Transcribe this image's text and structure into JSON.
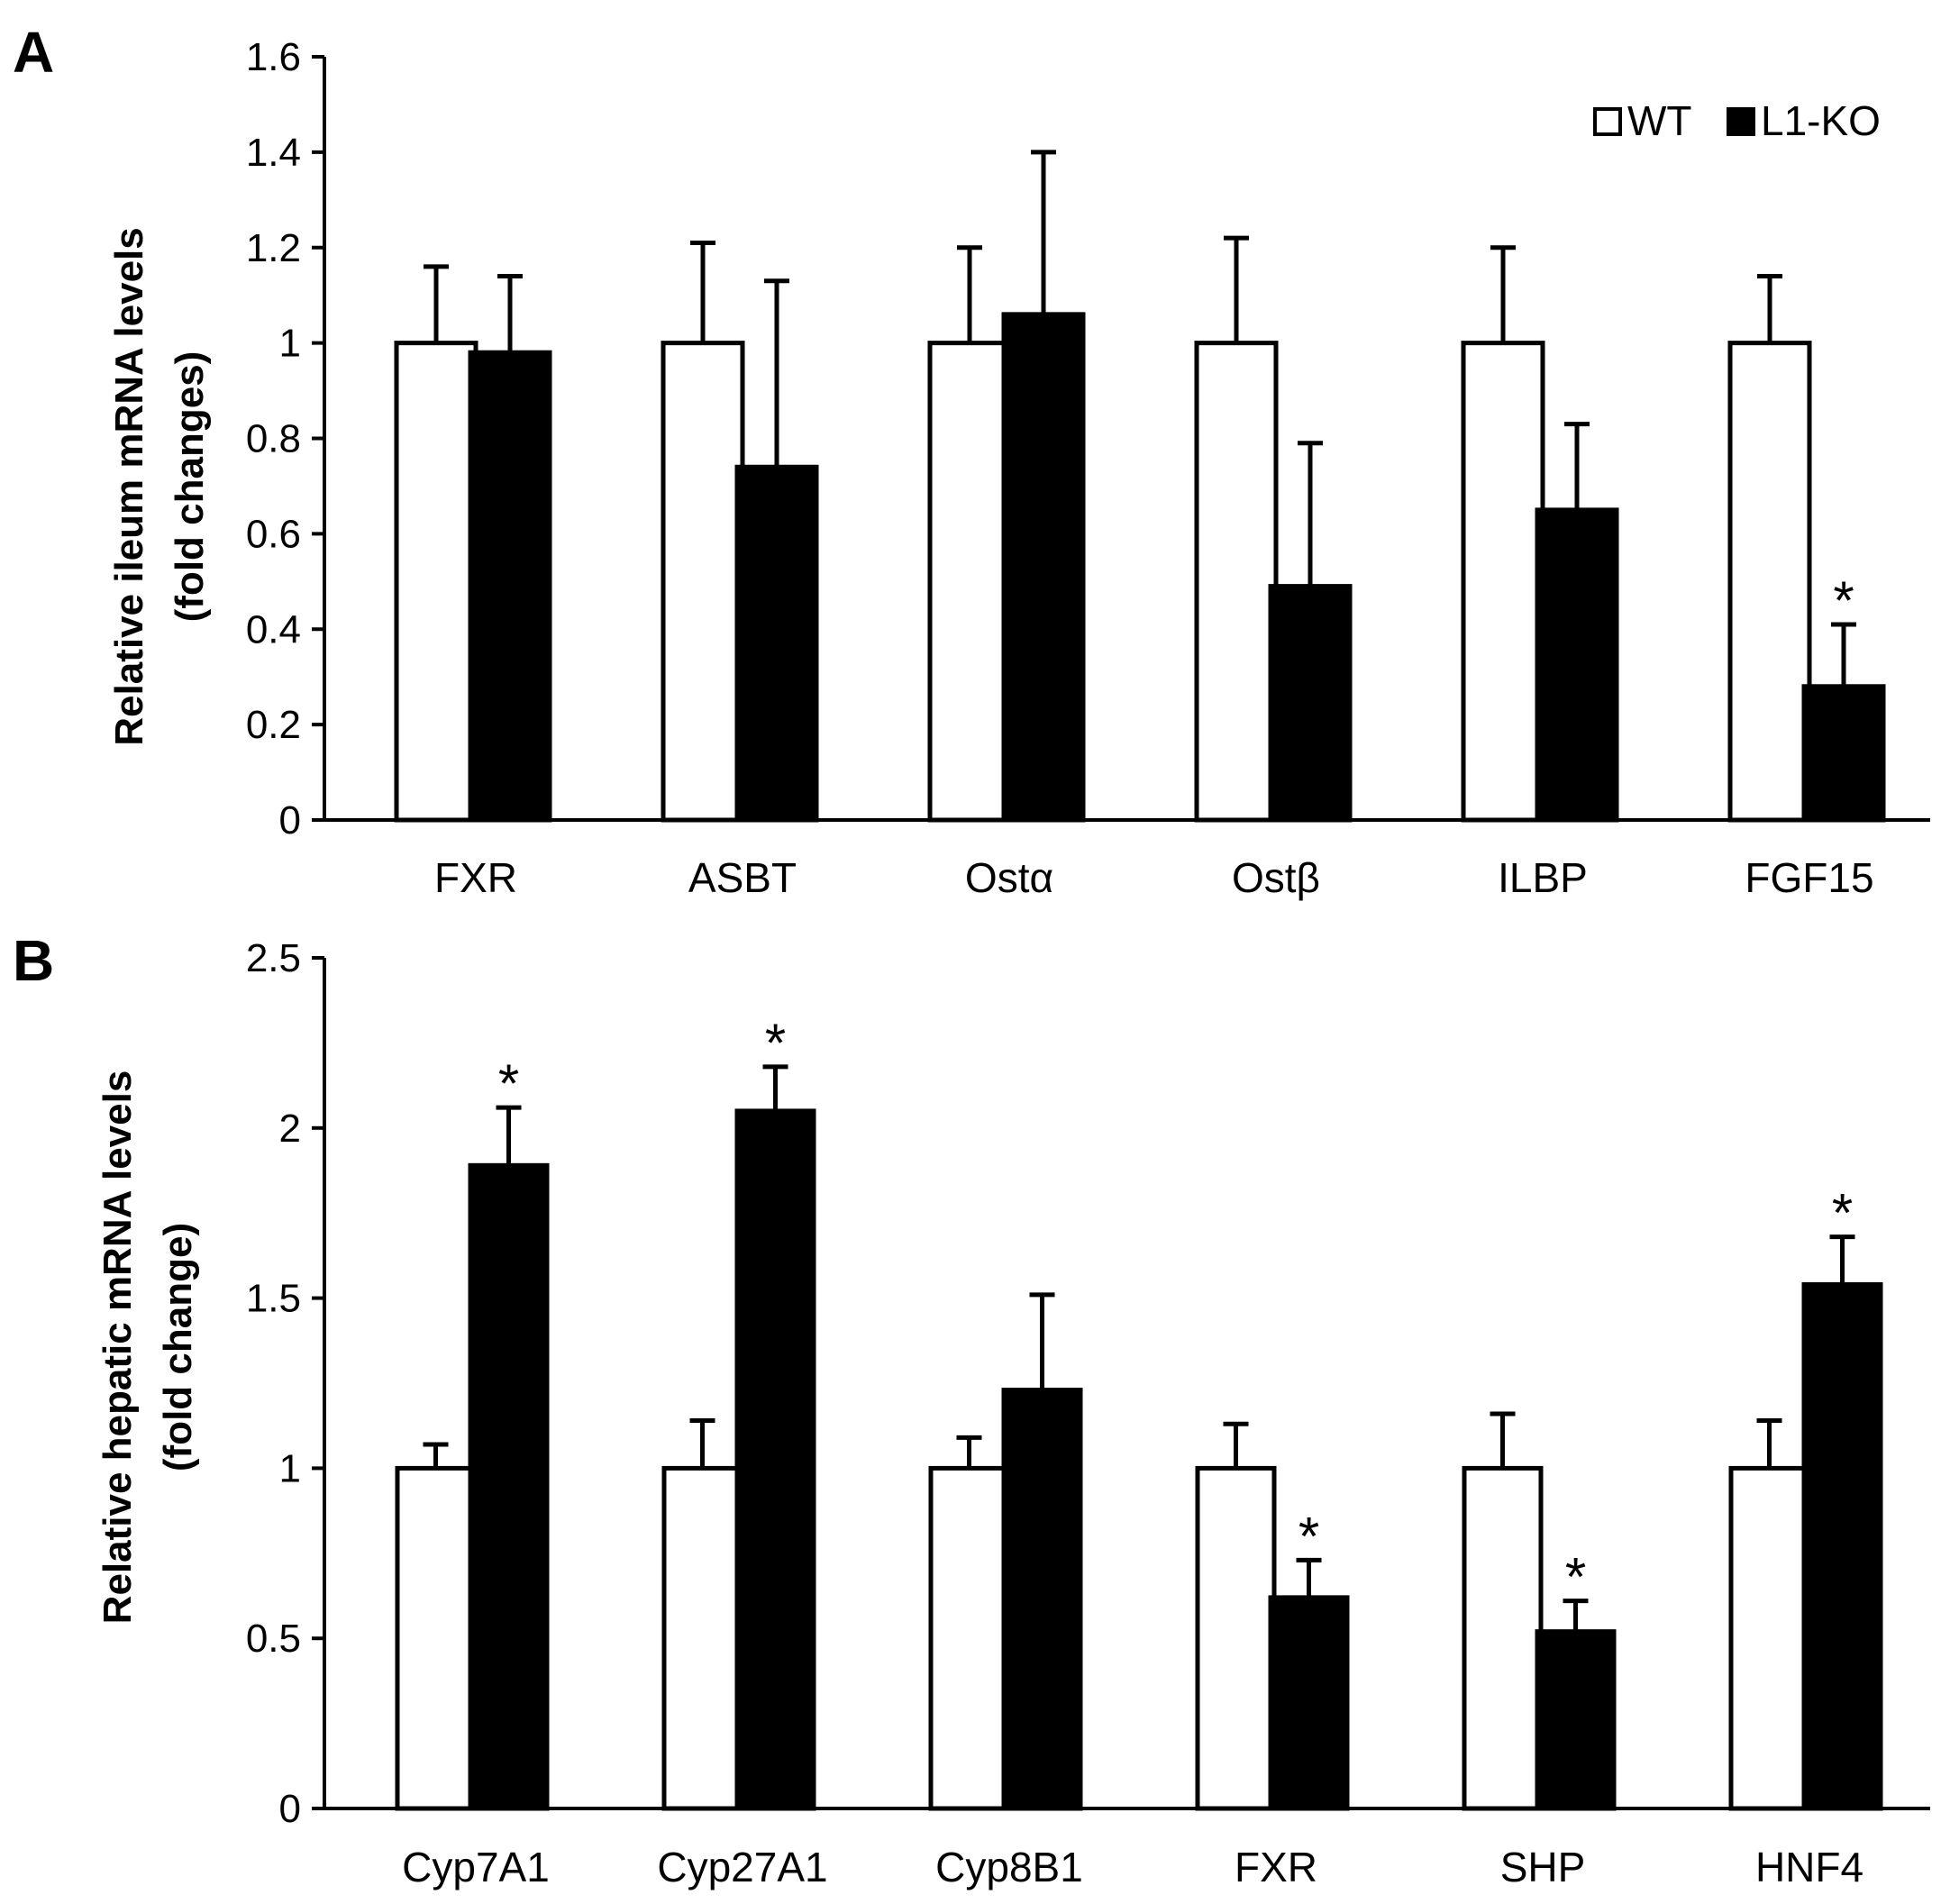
{
  "legend": [
    {
      "label": "WT",
      "fill": "#ffffff"
    },
    {
      "label": "L1-KO",
      "fill": "#000000"
    }
  ],
  "colors": {
    "wt": "#ffffff",
    "ko": "#000000",
    "stroke": "#000000"
  },
  "chart_data": [
    {
      "panel": "A",
      "type": "bar",
      "ylabel_line1": "Relative ileum mRNA levels",
      "ylabel_line2": "(fold changes)",
      "ylim": [
        0,
        1.6
      ],
      "yticks": [
        0,
        0.2,
        0.4,
        0.6,
        0.8,
        1,
        1.2,
        1.4,
        1.6
      ],
      "ytick_labels": [
        "0",
        "0.2",
        "0.4",
        "0.6",
        "0.8",
        "1",
        "1.2",
        "1.4",
        "1.6"
      ],
      "categories": [
        "FXR",
        "ASBT",
        "Ostα",
        "Ostβ",
        "ILBP",
        "FGF15"
      ],
      "series": [
        {
          "name": "WT",
          "values": [
            1,
            1,
            1,
            1,
            1,
            1
          ],
          "errors": [
            0.16,
            0.21,
            0.2,
            0.22,
            0.2,
            0.14
          ]
        },
        {
          "name": "L1-KO",
          "values": [
            0.98,
            0.74,
            1.06,
            0.49,
            0.65,
            0.28
          ],
          "errors": [
            0.16,
            0.39,
            0.34,
            0.3,
            0.18,
            0.13
          ]
        }
      ],
      "significance": [
        "",
        "",
        "",
        "",
        "",
        "*"
      ]
    },
    {
      "panel": "B",
      "type": "bar",
      "ylabel_line1": "Relative hepatic mRNA levels",
      "ylabel_line2": "(fold change)",
      "ylim": [
        0,
        2.5
      ],
      "yticks": [
        0,
        0.5,
        1,
        1.5,
        2,
        2.5
      ],
      "ytick_labels": [
        "0",
        "0.5",
        "1",
        "1.5",
        "2",
        "2.5"
      ],
      "categories": [
        "Cyp7A1",
        "Cyp27A1",
        "Cyp8B1",
        "FXR",
        "SHP",
        "HNF4"
      ],
      "series": [
        {
          "name": "WT",
          "values": [
            1,
            1,
            1,
            1,
            1,
            1
          ],
          "errors": [
            0.07,
            0.14,
            0.09,
            0.13,
            0.16,
            0.14
          ]
        },
        {
          "name": "L1-KO",
          "values": [
            1.89,
            2.05,
            1.23,
            0.62,
            0.52,
            1.54
          ],
          "errors": [
            0.17,
            0.13,
            0.28,
            0.11,
            0.09,
            0.14
          ]
        }
      ],
      "significance": [
        "*",
        "*",
        "",
        "*",
        "*",
        "*"
      ]
    }
  ]
}
